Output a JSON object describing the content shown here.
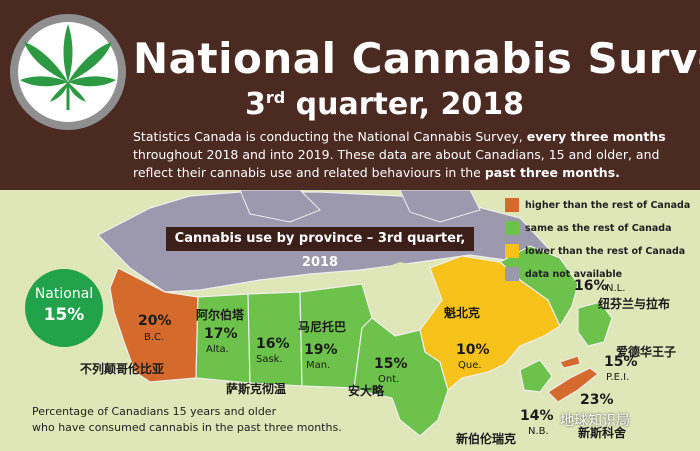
{
  "title": "National Cannabis Survey",
  "subtitle_main": "3",
  "subtitle_sup": "rd",
  "subtitle_rest": " quarter, 2018",
  "intro": {
    "p1": "Statistics Canada is conducting the National Cannabis Survey, ",
    "b1": "every three months",
    "p2": " throughout 2018 and into 2019. These data are about Canadians, 15 and older, and reflect their cannabis use and related behaviours in the ",
    "b2": "past three months.",
    "p3": ""
  },
  "chart_title": "Cannabis use by province – 3rd quarter, 2018",
  "legend": [
    {
      "label": "higher than the rest of Canada",
      "color": "#d46a2c"
    },
    {
      "label": "same as the rest of Canada",
      "color": "#6cc24a"
    },
    {
      "label": "lower than the rest of Canada",
      "color": "#f7c21a"
    },
    {
      "label": "data not available",
      "color": "#9c98ae"
    }
  ],
  "national": {
    "label": "National",
    "value": "15%"
  },
  "provinces": {
    "bc": {
      "pct": "20%",
      "abbr": "B.C.",
      "cn": "不列颠哥伦比亚"
    },
    "ab": {
      "pct": "17%",
      "abbr": "Alta.",
      "cn": "阿尔伯塔"
    },
    "sk": {
      "pct": "16%",
      "abbr": "Sask.",
      "cn": "萨斯克彻温"
    },
    "mb": {
      "pct": "19%",
      "abbr": "Man.",
      "cn": "马尼托巴"
    },
    "on": {
      "pct": "15%",
      "abbr": "Ont.",
      "cn": "安大略"
    },
    "qc": {
      "pct": "10%",
      "abbr": "Que.",
      "cn": "魁北克"
    },
    "nl": {
      "pct": "16%",
      "abbr": "N.L.",
      "cn": "纽芬兰与拉布"
    },
    "pei": {
      "pct": "15%",
      "abbr": "P.E.I.",
      "cn": "爱德华王子"
    },
    "ns": {
      "pct": "23%",
      "abbr": "",
      "cn": "新斯科舍"
    },
    "nb": {
      "pct": "14%",
      "abbr": "N.B.",
      "cn": "新伯伦瑞克"
    }
  },
  "footnote_1": "Percentage of Canadians 15 years and older",
  "footnote_2": "who have consumed cannabis in the past three months.",
  "watermark": "地球知识局",
  "colors": {
    "higher": "#d46a2c",
    "same": "#6cc24a",
    "lower": "#f7c21a",
    "na": "#9c98ae",
    "water": "#dfe6b7",
    "header": "#4a2a21"
  }
}
